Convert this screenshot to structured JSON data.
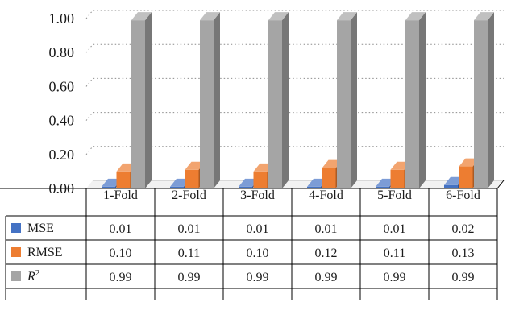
{
  "chart_data": {
    "type": "bar",
    "categories": [
      "1-Fold",
      "2-Fold",
      "3-Fold",
      "4-Fold",
      "5-Fold",
      "6-Fold"
    ],
    "series": [
      {
        "name": "MSE",
        "legend_main": "MSE",
        "legend_sup": "",
        "color": "#4472c4",
        "values": [
          0.01,
          0.01,
          0.01,
          0.01,
          0.01,
          0.02
        ]
      },
      {
        "name": "RMSE",
        "legend_main": "RMSE",
        "legend_sup": "",
        "color": "#ed7d31",
        "values": [
          0.1,
          0.11,
          0.1,
          0.12,
          0.11,
          0.13
        ]
      },
      {
        "name": "R2",
        "legend_main": "R",
        "legend_sup": "2",
        "color": "#a5a5a5",
        "values": [
          0.99,
          0.99,
          0.99,
          0.99,
          0.99,
          0.99
        ]
      }
    ],
    "table": [
      [
        "0.01",
        "0.01",
        "0.01",
        "0.01",
        "0.01",
        "0.02"
      ],
      [
        "0.10",
        "0.11",
        "0.10",
        "0.12",
        "0.11",
        "0.13"
      ],
      [
        "0.99",
        "0.99",
        "0.99",
        "0.99",
        "0.99",
        "0.99"
      ]
    ],
    "y_ticks": [
      "0.00",
      "0.20",
      "0.40",
      "0.60",
      "0.80",
      "1.00"
    ],
    "ylim": [
      0,
      1
    ],
    "grid": "dotted horizontal",
    "legend": "data table"
  }
}
